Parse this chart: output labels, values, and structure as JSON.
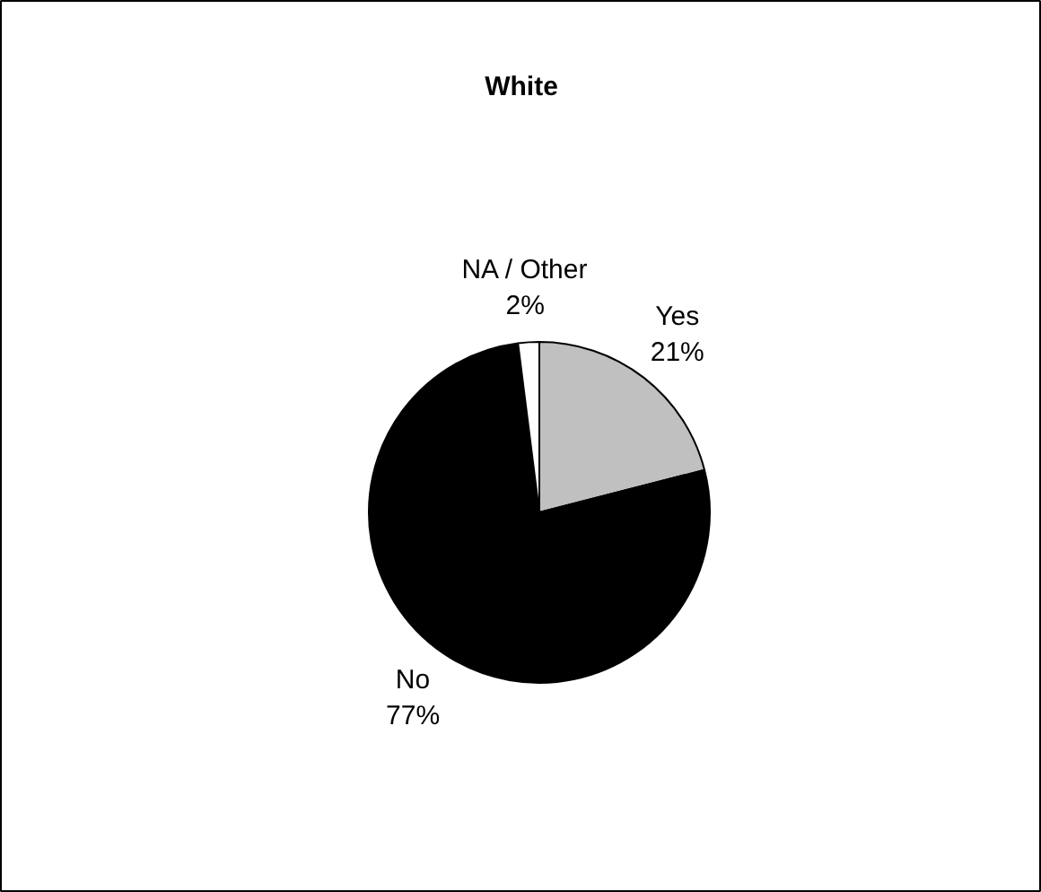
{
  "chart_data": {
    "type": "pie",
    "title": "White",
    "categories": [
      "Yes",
      "No",
      "NA / Other"
    ],
    "values": [
      21,
      77,
      2
    ],
    "value_labels": [
      "21%",
      "77%",
      "2%"
    ],
    "colors": [
      "#c0c0c0",
      "#000000",
      "#ffffff"
    ]
  }
}
